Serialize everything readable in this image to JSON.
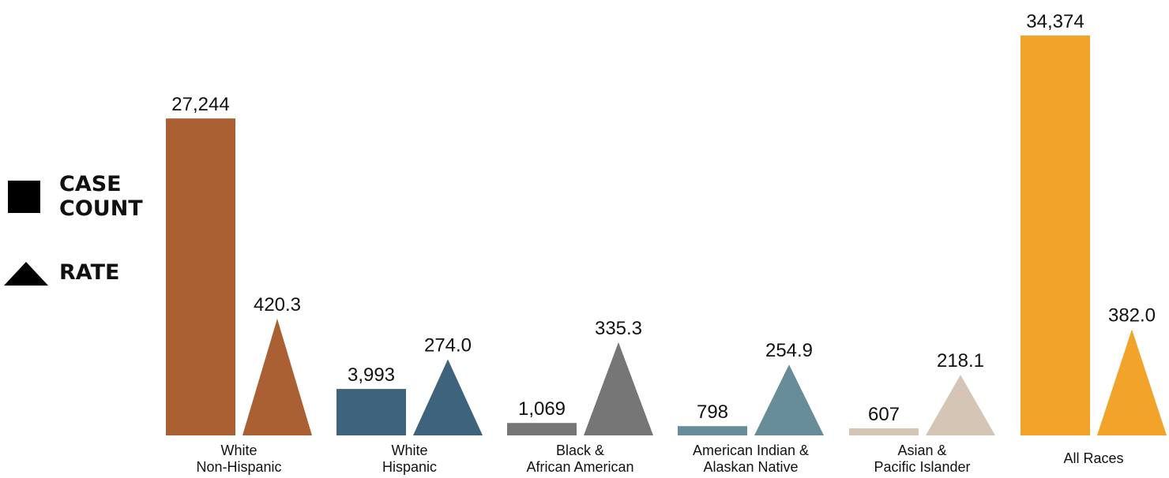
{
  "legend": {
    "count_label": "CASE\nCOUNT",
    "rate_label": "RATE",
    "count_icon": "square-icon",
    "rate_icon": "triangle-icon"
  },
  "chart_data": {
    "type": "bar",
    "title": "",
    "categories": [
      [
        "White",
        "Non-Hispanic"
      ],
      [
        "White",
        "Hispanic"
      ],
      [
        "Black &",
        "African American"
      ],
      [
        "American Indian &",
        "Alaskan Native"
      ],
      [
        "Asian &",
        "Pacific Islander"
      ],
      [
        "All Races"
      ]
    ],
    "colors": [
      "#ab6034",
      "#3e637c",
      "#767676",
      "#678d98",
      "#d5c5b4",
      "#f2a42a"
    ],
    "series": [
      {
        "name": "CASE COUNT",
        "marker": "square",
        "values": [
          27244,
          3993,
          1069,
          798,
          607,
          34374
        ],
        "labels": [
          "27,244",
          "3,993",
          "1,069",
          "798",
          "607",
          "34,374"
        ]
      },
      {
        "name": "RATE",
        "marker": "triangle",
        "values": [
          420.3,
          274.0,
          335.3,
          254.9,
          218.1,
          382.0
        ],
        "labels": [
          "420.3",
          "274.0",
          "335.3",
          "254.9",
          "218.1",
          "382.0"
        ]
      }
    ],
    "legend_position": "left",
    "grid": false
  }
}
